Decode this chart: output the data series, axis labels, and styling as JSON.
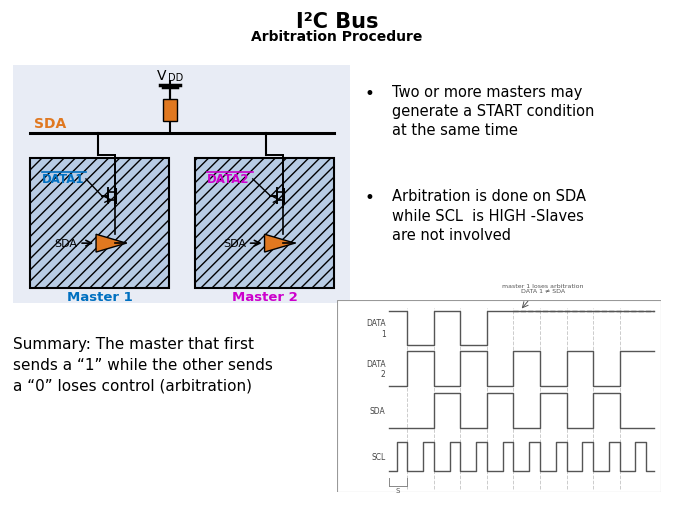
{
  "title": "I²C Bus",
  "subtitle": "Arbitration Procedure",
  "bullet1_line1": "Two or more masters may",
  "bullet1_line2": "generate a START condition",
  "bullet1_line3": "at the same time",
  "bullet2_line1": "Arbitration is done on SDA",
  "bullet2_line2": "while SCL  is HIGH -Slaves",
  "bullet2_line3": "are not involved",
  "summary_line1": "Summary: The master that first",
  "summary_line2": "sends a “1” while the other sends",
  "summary_line3": "a “0” loses control (arbitration)",
  "master1_label": "Master 1",
  "master2_label": "Master 2",
  "data1_label": "DATA1",
  "data2_label": "DATA2",
  "sda_label": "SDA",
  "vdd_label": "V",
  "vdd_sub": "DD",
  "color_blue": "#0070C0",
  "color_magenta": "#CC00CC",
  "color_orange": "#E07820",
  "color_bg_circuit": "#E8ECF5",
  "color_hatch_box": "#B8CCE4",
  "color_dark": "#404040",
  "waveform_annotation_line1": "master 1 loses arbitration",
  "waveform_annotation_line2": "DATA 1 ≠ SDA",
  "data1_wave_label": "DATA\n1",
  "data2_wave_label": "DATA\n2",
  "sda_wave_label": "SDA",
  "scl_wave_label": "SCL"
}
